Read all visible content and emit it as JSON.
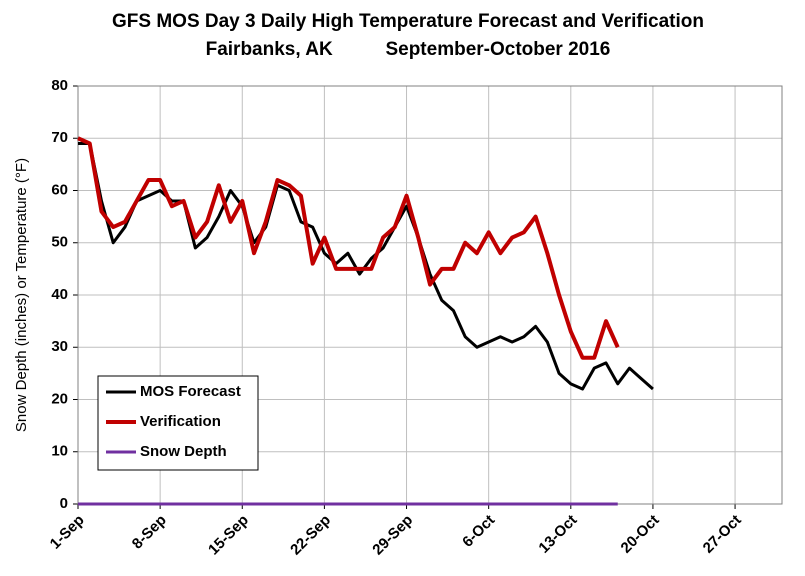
{
  "chart_data": {
    "type": "line",
    "title": "GFS MOS Day 3 Daily High Temperature Forecast and Verification",
    "subtitle": "Fairbanks, AK          September-October 2016",
    "y_label": "Snow Depth (inches) or Temperature (°F)",
    "x": [
      0,
      1,
      2,
      3,
      4,
      5,
      6,
      7,
      8,
      9,
      10,
      11,
      12,
      13,
      14,
      15,
      16,
      17,
      18,
      19,
      20,
      21,
      22,
      23,
      24,
      25,
      26,
      27,
      28,
      29,
      30,
      31,
      32,
      33,
      34,
      35,
      36,
      37,
      38,
      39,
      40,
      41,
      42,
      43,
      44,
      45,
      46,
      47,
      48,
      49
    ],
    "series": [
      {
        "name": "MOS Forecast",
        "color": "#000000",
        "values": [
          69,
          69,
          58,
          50,
          53,
          58,
          59,
          60,
          58,
          58,
          49,
          51,
          55,
          60,
          57,
          50,
          53,
          61,
          60,
          54,
          53,
          48,
          46,
          48,
          44,
          47,
          49,
          53,
          57,
          51,
          44,
          39,
          37,
          32,
          30,
          31,
          32,
          31,
          32,
          34,
          31,
          25,
          23,
          22,
          26,
          27,
          23,
          26,
          24,
          22
        ]
      },
      {
        "name": "Verification",
        "color": "#c00000",
        "values": [
          70,
          69,
          56,
          53,
          54,
          58,
          62,
          62,
          57,
          58,
          51,
          54,
          61,
          54,
          58,
          48,
          54,
          62,
          61,
          59,
          46,
          51,
          45,
          45,
          45,
          45,
          51,
          53,
          59,
          51,
          42,
          45,
          45,
          50,
          48,
          52,
          48,
          51,
          52,
          55,
          48,
          40,
          33,
          28,
          28,
          35,
          30,
          null,
          null,
          null
        ]
      },
      {
        "name": "Snow Depth",
        "color": "#7030a0",
        "values": [
          0,
          0,
          0,
          0,
          0,
          0,
          0,
          0,
          0,
          0,
          0,
          0,
          0,
          0,
          0,
          0,
          0,
          0,
          0,
          0,
          0,
          0,
          0,
          0,
          0,
          0,
          0,
          0,
          0,
          0,
          0,
          0,
          0,
          0,
          0,
          0,
          0,
          0,
          0,
          0,
          0,
          0,
          0,
          0,
          0,
          0,
          0,
          null,
          null,
          null
        ]
      }
    ],
    "xlim": [
      0,
      60
    ],
    "xticks": [
      {
        "value": 0,
        "label": "1-Sep"
      },
      {
        "value": 7,
        "label": "8-Sep"
      },
      {
        "value": 14,
        "label": "15-Sep"
      },
      {
        "value": 21,
        "label": "22-Sep"
      },
      {
        "value": 28,
        "label": "29-Sep"
      },
      {
        "value": 35,
        "label": "6-Oct"
      },
      {
        "value": 42,
        "label": "13-Oct"
      },
      {
        "value": 49,
        "label": "20-Oct"
      },
      {
        "value": 56,
        "label": "27-Oct"
      }
    ],
    "ylim": [
      0,
      80
    ],
    "yticks": [
      0,
      10,
      20,
      30,
      40,
      50,
      60,
      70,
      80
    ],
    "grid": true,
    "legend": "lower left"
  }
}
